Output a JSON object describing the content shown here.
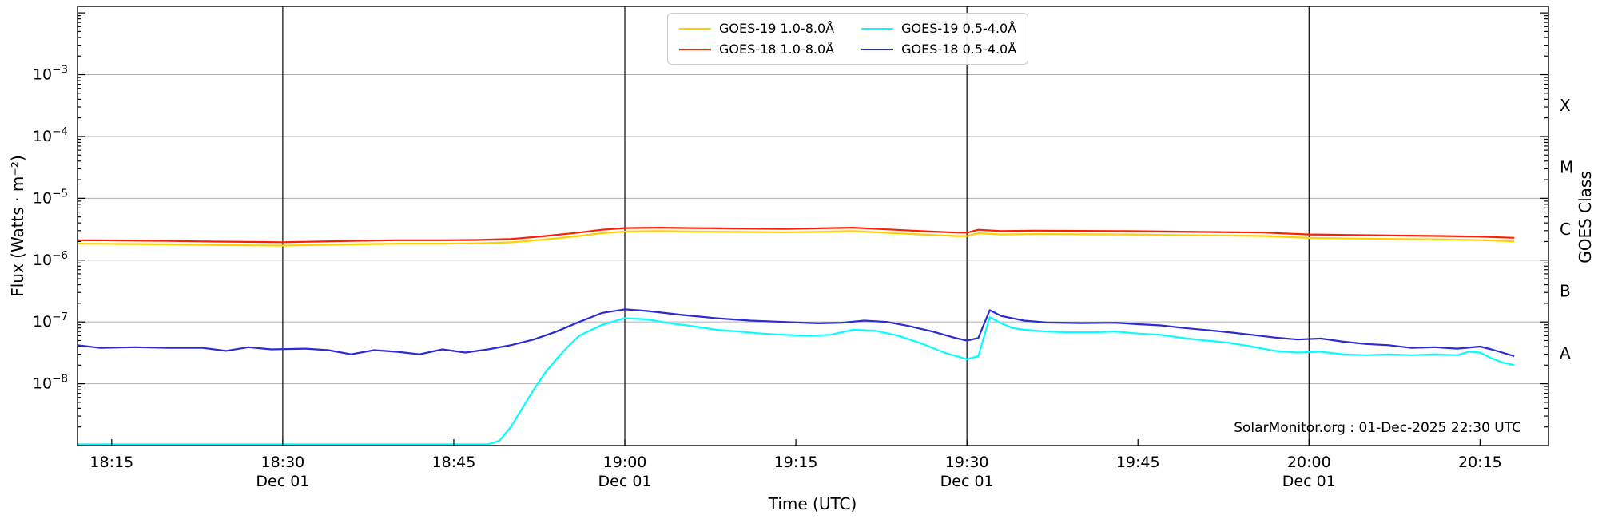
{
  "watermark": "SolarMonitor.org : 01-Dec-2025 22:30 UTC",
  "colors": {
    "background": "#ffffff",
    "grid": "#b0b0b0",
    "day_line": "#1a1a1a",
    "spine": "#000000",
    "goes19_long": "#ffd000",
    "goes18_long": "#ff1e00",
    "goes19_short": "#00ffff",
    "goes18_short": "#2b2bd5"
  },
  "chart_data": {
    "type": "line",
    "title": "",
    "xlabel": "Time (UTC)",
    "ylabel": "Flux (Watts · m⁻²)",
    "ylabel_right": "GOES Class",
    "x_axis_note": "minutes after 18:00 UTC on 01-Dec-2025",
    "x_range_minutes": [
      12,
      141
    ],
    "ylim_log": [
      -9,
      -1.895
    ],
    "grid": "horizontal-decades",
    "legend_position": "top-center",
    "x_ticks": [
      {
        "t": 15,
        "label": "18:15"
      },
      {
        "t": 30,
        "label": "18:30",
        "sub": "Dec 01"
      },
      {
        "t": 45,
        "label": "18:45"
      },
      {
        "t": 60,
        "label": "19:00",
        "sub": "Dec 01"
      },
      {
        "t": 75,
        "label": "19:15"
      },
      {
        "t": 90,
        "label": "19:30",
        "sub": "Dec 01"
      },
      {
        "t": 105,
        "label": "19:45"
      },
      {
        "t": 120,
        "label": "20:00",
        "sub": "Dec 01"
      },
      {
        "t": 135,
        "label": "20:15"
      }
    ],
    "day_lines_minutes": [
      30,
      60,
      90,
      120
    ],
    "y_tick_exponents": [
      -3,
      -4,
      -5,
      -6,
      -7,
      -8
    ],
    "class_labels": [
      {
        "label": "X",
        "log_center": -3.5
      },
      {
        "label": "M",
        "log_center": -4.5
      },
      {
        "label": "C",
        "log_center": -5.5
      },
      {
        "label": "B",
        "log_center": -6.5
      },
      {
        "label": "A",
        "log_center": -7.5
      }
    ],
    "series": [
      {
        "name": "GOES-19 1.0-8.0Å",
        "color_key": "goes19_long",
        "points": [
          [
            12,
            1.85e-06
          ],
          [
            16,
            1.83e-06
          ],
          [
            20,
            1.8e-06
          ],
          [
            24,
            1.76e-06
          ],
          [
            28,
            1.73e-06
          ],
          [
            30,
            1.72e-06
          ],
          [
            33,
            1.76e-06
          ],
          [
            36,
            1.8e-06
          ],
          [
            40,
            1.85e-06
          ],
          [
            44,
            1.85e-06
          ],
          [
            47,
            1.87e-06
          ],
          [
            50,
            1.94e-06
          ],
          [
            53,
            2.16e-06
          ],
          [
            56,
            2.46e-06
          ],
          [
            58,
            2.73e-06
          ],
          [
            60,
            2.9e-06
          ],
          [
            63,
            2.95e-06
          ],
          [
            66,
            2.9e-06
          ],
          [
            70,
            2.86e-06
          ],
          [
            74,
            2.82e-06
          ],
          [
            78,
            2.9e-06
          ],
          [
            80,
            2.95e-06
          ],
          [
            83,
            2.77e-06
          ],
          [
            86,
            2.6e-06
          ],
          [
            89,
            2.46e-06
          ],
          [
            90,
            2.45e-06
          ],
          [
            91,
            2.73e-06
          ],
          [
            93,
            2.6e-06
          ],
          [
            96,
            2.64e-06
          ],
          [
            100,
            2.62e-06
          ],
          [
            104,
            2.6e-06
          ],
          [
            108,
            2.55e-06
          ],
          [
            112,
            2.51e-06
          ],
          [
            116,
            2.46e-06
          ],
          [
            120,
            2.29e-06
          ],
          [
            124,
            2.24e-06
          ],
          [
            128,
            2.2e-06
          ],
          [
            132,
            2.16e-06
          ],
          [
            135,
            2.11e-06
          ],
          [
            138,
            2.02e-06
          ]
        ]
      },
      {
        "name": "GOES-18 1.0-8.0Å",
        "color_key": "goes18_long",
        "points": [
          [
            12,
            2.1e-06
          ],
          [
            16,
            2.08e-06
          ],
          [
            20,
            2.05e-06
          ],
          [
            24,
            2e-06
          ],
          [
            28,
            1.97e-06
          ],
          [
            30,
            1.95e-06
          ],
          [
            33,
            2e-06
          ],
          [
            36,
            2.05e-06
          ],
          [
            40,
            2.1e-06
          ],
          [
            44,
            2.1e-06
          ],
          [
            47,
            2.12e-06
          ],
          [
            50,
            2.2e-06
          ],
          [
            53,
            2.45e-06
          ],
          [
            56,
            2.8e-06
          ],
          [
            58,
            3.1e-06
          ],
          [
            60,
            3.3e-06
          ],
          [
            63,
            3.35e-06
          ],
          [
            66,
            3.3e-06
          ],
          [
            70,
            3.25e-06
          ],
          [
            74,
            3.2e-06
          ],
          [
            78,
            3.3e-06
          ],
          [
            80,
            3.35e-06
          ],
          [
            83,
            3.15e-06
          ],
          [
            86,
            2.95e-06
          ],
          [
            89,
            2.8e-06
          ],
          [
            90,
            2.78e-06
          ],
          [
            91,
            3.1e-06
          ],
          [
            93,
            2.95e-06
          ],
          [
            96,
            3e-06
          ],
          [
            100,
            2.98e-06
          ],
          [
            104,
            2.95e-06
          ],
          [
            108,
            2.9e-06
          ],
          [
            112,
            2.85e-06
          ],
          [
            116,
            2.8e-06
          ],
          [
            120,
            2.6e-06
          ],
          [
            124,
            2.55e-06
          ],
          [
            128,
            2.5e-06
          ],
          [
            132,
            2.45e-06
          ],
          [
            135,
            2.4e-06
          ],
          [
            138,
            2.3e-06
          ]
        ]
      },
      {
        "name": "GOES-19 0.5-4.0Å",
        "color_key": "goes19_short",
        "points": [
          [
            12,
            1.05e-09
          ],
          [
            20,
            1.05e-09
          ],
          [
            30,
            1.05e-09
          ],
          [
            40,
            1.05e-09
          ],
          [
            48,
            1.05e-09
          ],
          [
            49,
            1.2e-09
          ],
          [
            50,
            2e-09
          ],
          [
            51,
            4e-09
          ],
          [
            52,
            8e-09
          ],
          [
            53,
            1.5e-08
          ],
          [
            54,
            2.5e-08
          ],
          [
            55,
            4e-08
          ],
          [
            56,
            6e-08
          ],
          [
            58,
            9e-08
          ],
          [
            60,
            1.15e-07
          ],
          [
            62,
            1.1e-07
          ],
          [
            64,
            9.5e-08
          ],
          [
            66,
            8.5e-08
          ],
          [
            68,
            7.5e-08
          ],
          [
            70,
            7e-08
          ],
          [
            72,
            6.5e-08
          ],
          [
            74,
            6.2e-08
          ],
          [
            76,
            6e-08
          ],
          [
            78,
            6.2e-08
          ],
          [
            80,
            7.5e-08
          ],
          [
            82,
            7.2e-08
          ],
          [
            84,
            6e-08
          ],
          [
            86,
            4.5e-08
          ],
          [
            88,
            3.2e-08
          ],
          [
            90,
            2.5e-08
          ],
          [
            91,
            2.8e-08
          ],
          [
            92,
            1.2e-07
          ],
          [
            93,
            9.5e-08
          ],
          [
            94,
            8e-08
          ],
          [
            95,
            7.5e-08
          ],
          [
            97,
            7e-08
          ],
          [
            99,
            6.8e-08
          ],
          [
            101,
            6.8e-08
          ],
          [
            103,
            7e-08
          ],
          [
            105,
            6.5e-08
          ],
          [
            107,
            6.2e-08
          ],
          [
            109,
            5.5e-08
          ],
          [
            111,
            5e-08
          ],
          [
            113,
            4.6e-08
          ],
          [
            115,
            4e-08
          ],
          [
            117,
            3.4e-08
          ],
          [
            119,
            3.2e-08
          ],
          [
            121,
            3.3e-08
          ],
          [
            123,
            3e-08
          ],
          [
            125,
            2.9e-08
          ],
          [
            127,
            3e-08
          ],
          [
            129,
            2.9e-08
          ],
          [
            131,
            3e-08
          ],
          [
            133,
            2.9e-08
          ],
          [
            134,
            3.3e-08
          ],
          [
            135,
            3.2e-08
          ],
          [
            136,
            2.6e-08
          ],
          [
            137,
            2.2e-08
          ],
          [
            138,
            2e-08
          ]
        ]
      },
      {
        "name": "GOES-18 0.5-4.0Å",
        "color_key": "goes18_short",
        "points": [
          [
            12,
            4.2e-08
          ],
          [
            14,
            3.8e-08
          ],
          [
            17,
            3.9e-08
          ],
          [
            20,
            3.8e-08
          ],
          [
            23,
            3.8e-08
          ],
          [
            25,
            3.4e-08
          ],
          [
            27,
            3.9e-08
          ],
          [
            29,
            3.6e-08
          ],
          [
            32,
            3.7e-08
          ],
          [
            34,
            3.5e-08
          ],
          [
            36,
            3e-08
          ],
          [
            38,
            3.5e-08
          ],
          [
            40,
            3.3e-08
          ],
          [
            42,
            3e-08
          ],
          [
            44,
            3.6e-08
          ],
          [
            46,
            3.2e-08
          ],
          [
            48,
            3.6e-08
          ],
          [
            50,
            4.2e-08
          ],
          [
            52,
            5.2e-08
          ],
          [
            54,
            7e-08
          ],
          [
            56,
            1e-07
          ],
          [
            58,
            1.4e-07
          ],
          [
            60,
            1.6e-07
          ],
          [
            62,
            1.5e-07
          ],
          [
            65,
            1.3e-07
          ],
          [
            68,
            1.15e-07
          ],
          [
            71,
            1.05e-07
          ],
          [
            74,
            1e-07
          ],
          [
            77,
            9.5e-08
          ],
          [
            79,
            9.7e-08
          ],
          [
            81,
            1.05e-07
          ],
          [
            83,
            1e-07
          ],
          [
            85,
            8.5e-08
          ],
          [
            87,
            7e-08
          ],
          [
            89,
            5.5e-08
          ],
          [
            90,
            5e-08
          ],
          [
            91,
            5.5e-08
          ],
          [
            92,
            1.55e-07
          ],
          [
            93,
            1.25e-07
          ],
          [
            95,
            1.05e-07
          ],
          [
            97,
            9.8e-08
          ],
          [
            100,
            9.6e-08
          ],
          [
            103,
            9.7e-08
          ],
          [
            105,
            9.2e-08
          ],
          [
            107,
            8.8e-08
          ],
          [
            109,
            8e-08
          ],
          [
            111,
            7.4e-08
          ],
          [
            113,
            6.8e-08
          ],
          [
            115,
            6.2e-08
          ],
          [
            117,
            5.6e-08
          ],
          [
            119,
            5.2e-08
          ],
          [
            121,
            5.4e-08
          ],
          [
            123,
            4.8e-08
          ],
          [
            125,
            4.4e-08
          ],
          [
            127,
            4.2e-08
          ],
          [
            129,
            3.8e-08
          ],
          [
            131,
            3.9e-08
          ],
          [
            133,
            3.7e-08
          ],
          [
            135,
            4e-08
          ],
          [
            136,
            3.6e-08
          ],
          [
            138,
            2.8e-08
          ]
        ]
      }
    ]
  }
}
